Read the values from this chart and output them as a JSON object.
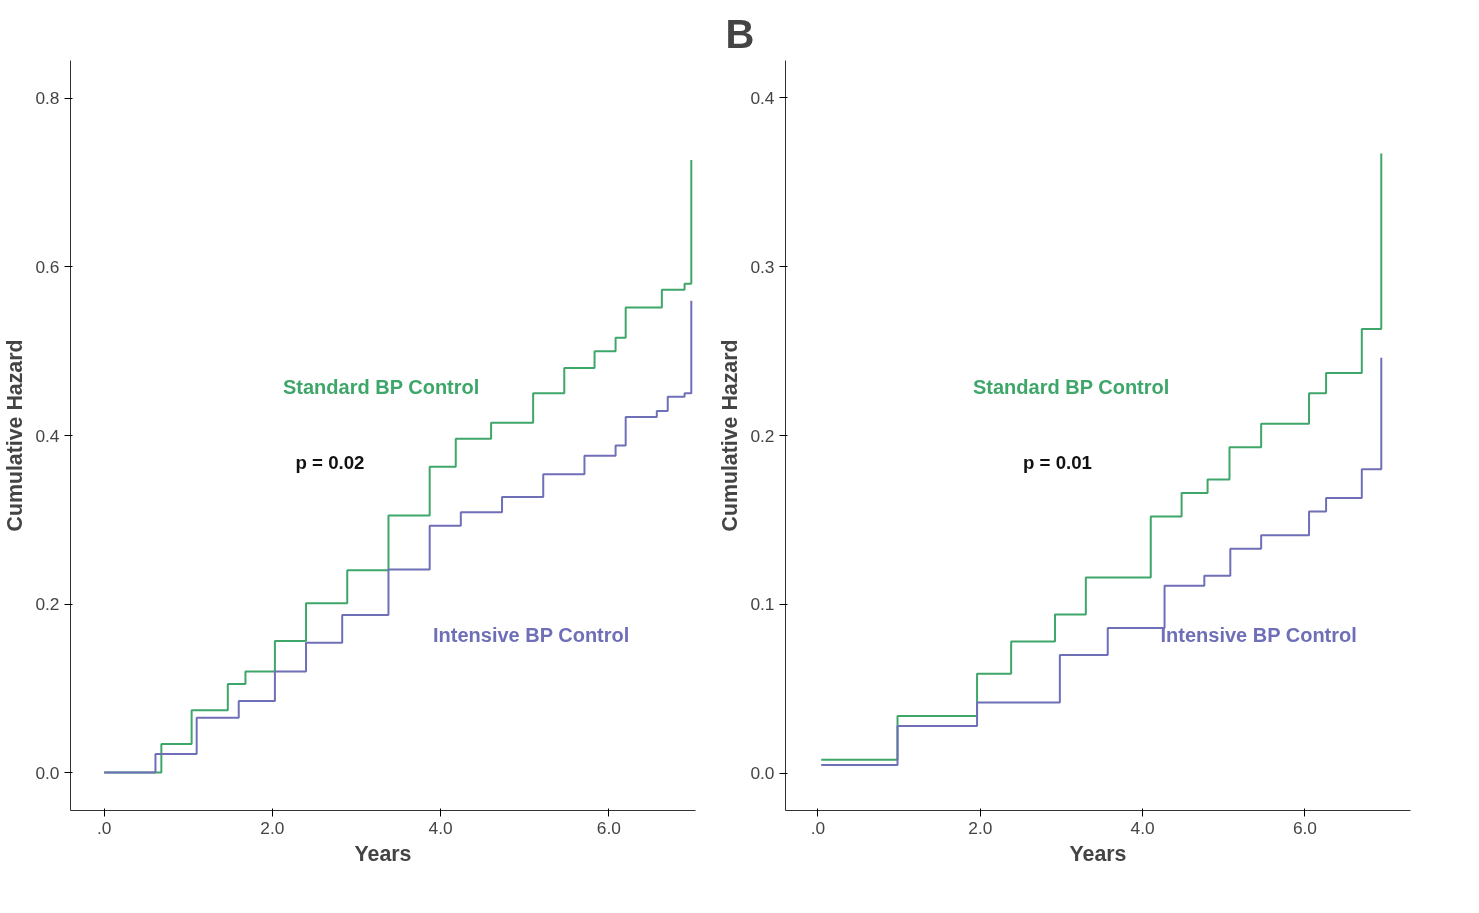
{
  "chart_data": [
    {
      "type": "step",
      "xlabel": "Years",
      "ylabel": "Cumulative Hazard",
      "xlim": [
        -0.4,
        7.03
      ],
      "ylim": [
        -0.045,
        0.845
      ],
      "xticks": [
        {
          "value": 0,
          "label": ".0"
        },
        {
          "value": 2,
          "label": "2.0"
        },
        {
          "value": 4,
          "label": "4.0"
        },
        {
          "value": 6,
          "label": "6.0"
        }
      ],
      "yticks": [
        {
          "value": 0,
          "label": "0.0"
        },
        0.2,
        0.4,
        0.6,
        0.8
      ],
      "grid": false,
      "legend": false,
      "annotations": [
        "p = 0.02"
      ],
      "series": [
        {
          "name": "Standard BP Control",
          "color": "#3fa66a",
          "x": [
            0,
            0.68,
            1.04,
            1.47,
            1.68,
            2.03,
            2.4,
            2.89,
            3.38,
            3.87,
            4.18,
            4.6,
            5.1,
            5.47,
            5.83,
            6.08,
            6.2,
            6.55,
            6.63,
            6.9,
            6.98
          ],
          "values": [
            0,
            0.034,
            0.074,
            0.105,
            0.12,
            0.156,
            0.201,
            0.24,
            0.305,
            0.363,
            0.396,
            0.415,
            0.45,
            0.48,
            0.5,
            0.516,
            0.552,
            0.552,
            0.573,
            0.58,
            0.727
          ]
        },
        {
          "name": "Intensive BP Control",
          "color": "#6f6fb8",
          "x": [
            0,
            0.61,
            1.1,
            1.6,
            2.03,
            2.4,
            2.83,
            3.38,
            3.87,
            4.24,
            4.73,
            5.22,
            5.71,
            6.08,
            6.2,
            6.57,
            6.7,
            6.9,
            6.98
          ],
          "values": [
            0,
            0.022,
            0.065,
            0.085,
            0.12,
            0.154,
            0.187,
            0.241,
            0.293,
            0.309,
            0.327,
            0.354,
            0.376,
            0.388,
            0.422,
            0.429,
            0.446,
            0.45,
            0.56
          ]
        }
      ]
    },
    {
      "type": "step",
      "title": "B",
      "xlabel": "Years",
      "ylabel": "Cumulative Hazard",
      "xlim": [
        -0.4,
        7.3
      ],
      "ylim": [
        -0.022,
        0.422
      ],
      "xticks": [
        {
          "value": 0,
          "label": ".0"
        },
        {
          "value": 2,
          "label": "2.0"
        },
        {
          "value": 4,
          "label": "4.0"
        },
        {
          "value": 6,
          "label": "6.0"
        }
      ],
      "yticks": [
        {
          "value": 0,
          "label": "0.0"
        },
        0.1,
        0.2,
        0.3,
        0.4
      ],
      "grid": false,
      "legend": false,
      "annotations": [
        "p = 0.01"
      ],
      "series": [
        {
          "name": "Standard BP Control",
          "color": "#3fa66a",
          "x": [
            0.04,
            0.98,
            1.96,
            2.38,
            2.92,
            3.3,
            4.1,
            4.48,
            4.8,
            5.07,
            5.46,
            5.99,
            6.05,
            6.26,
            6.7,
            6.86,
            6.94
          ],
          "values": [
            0.008,
            0.034,
            0.059,
            0.078,
            0.094,
            0.116,
            0.152,
            0.166,
            0.174,
            0.193,
            0.207,
            0.207,
            0.225,
            0.237,
            0.263,
            0.263,
            0.367
          ]
        },
        {
          "name": "Intensive BP Control",
          "color": "#6f6fb8",
          "x": [
            0.04,
            0.98,
            1.96,
            2.98,
            3.57,
            4.27,
            4.76,
            5.08,
            5.46,
            5.99,
            6.05,
            6.26,
            6.7,
            6.86,
            6.94
          ],
          "values": [
            0.005,
            0.028,
            0.042,
            0.07,
            0.086,
            0.111,
            0.117,
            0.133,
            0.141,
            0.141,
            0.155,
            0.163,
            0.18,
            0.18,
            0.246
          ]
        }
      ]
    }
  ]
}
